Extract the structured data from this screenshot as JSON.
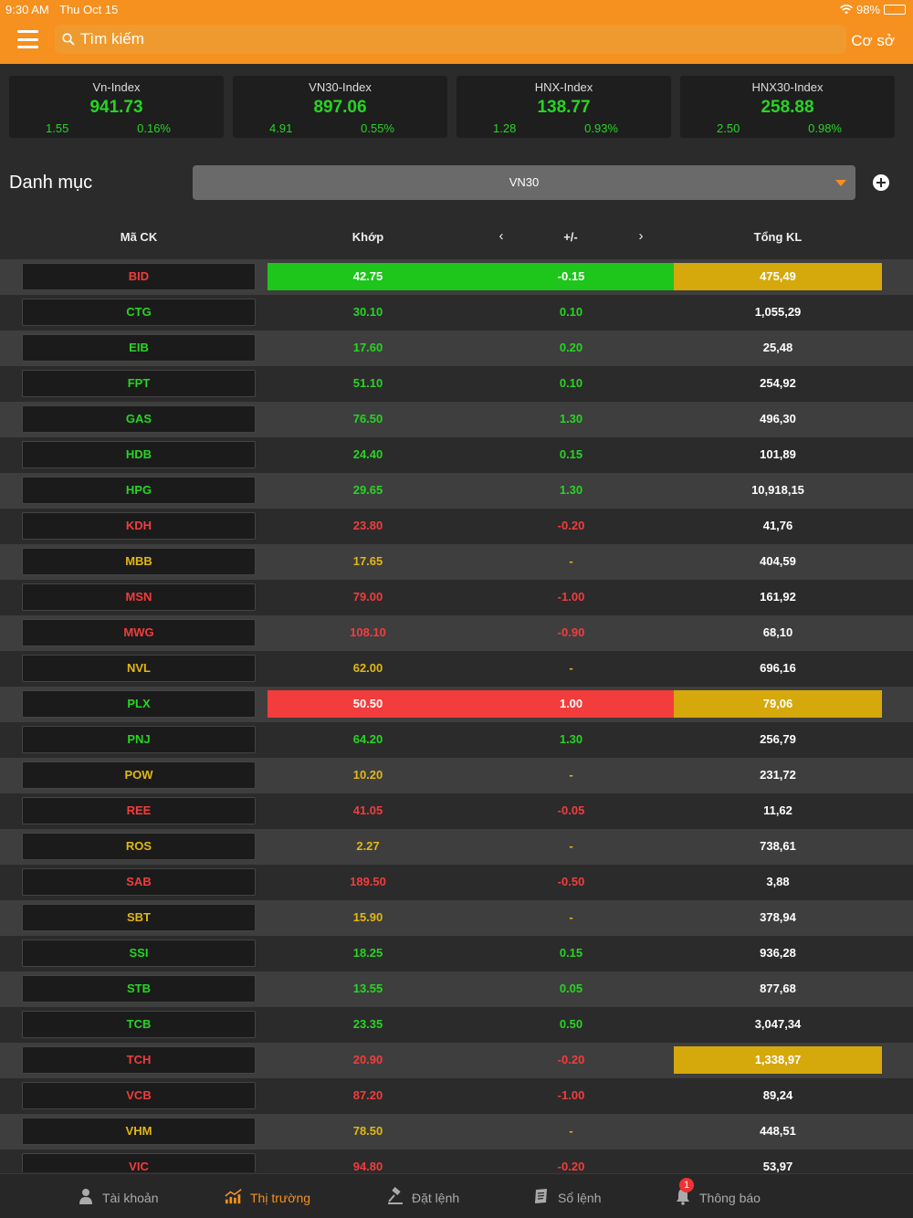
{
  "status": {
    "time": "9:30 AM",
    "date": "Thu Oct 15",
    "battery": "98%"
  },
  "header": {
    "search_placeholder": "Tìm kiếm",
    "base_label": "Cơ sở"
  },
  "colors": {
    "accent": "#f6901e",
    "up": "#27d523",
    "down": "#f33c3c",
    "ref": "#e2b714",
    "volume_highlight": "#d5a80c"
  },
  "indices": [
    {
      "name": "Vn-Index",
      "value": "941.73",
      "change": "1.55",
      "pct": "0.16%"
    },
    {
      "name": "VN30-Index",
      "value": "897.06",
      "change": "4.91",
      "pct": "0.55%"
    },
    {
      "name": "HNX-Index",
      "value": "138.77",
      "change": "1.28",
      "pct": "0.93%"
    },
    {
      "name": "HNX30-Index",
      "value": "258.88",
      "change": "2.50",
      "pct": "0.98%"
    }
  ],
  "category": {
    "label": "Danh mục",
    "selected": "VN30"
  },
  "table": {
    "headers": {
      "symbol": "Mã CK",
      "match": "Khớp",
      "prev": "‹",
      "change": "+/-",
      "next": "›",
      "volume": "Tổng KL"
    },
    "rows": [
      {
        "symbol": "BID",
        "price": "42.75",
        "change": "-0.15",
        "volume": "475,49",
        "color": "red",
        "flash": "green",
        "vol_hl": true
      },
      {
        "symbol": "CTG",
        "price": "30.10",
        "change": "0.10",
        "volume": "1,055,29",
        "color": "green"
      },
      {
        "symbol": "EIB",
        "price": "17.60",
        "change": "0.20",
        "volume": "25,48",
        "color": "green"
      },
      {
        "symbol": "FPT",
        "price": "51.10",
        "change": "0.10",
        "volume": "254,92",
        "color": "green"
      },
      {
        "symbol": "GAS",
        "price": "76.50",
        "change": "1.30",
        "volume": "496,30",
        "color": "green"
      },
      {
        "symbol": "HDB",
        "price": "24.40",
        "change": "0.15",
        "volume": "101,89",
        "color": "green"
      },
      {
        "symbol": "HPG",
        "price": "29.65",
        "change": "1.30",
        "volume": "10,918,15",
        "color": "green"
      },
      {
        "symbol": "KDH",
        "price": "23.80",
        "change": "-0.20",
        "volume": "41,76",
        "color": "red"
      },
      {
        "symbol": "MBB",
        "price": "17.65",
        "change": "-",
        "volume": "404,59",
        "color": "yellow"
      },
      {
        "symbol": "MSN",
        "price": "79.00",
        "change": "-1.00",
        "volume": "161,92",
        "color": "red"
      },
      {
        "symbol": "MWG",
        "price": "108.10",
        "change": "-0.90",
        "volume": "68,10",
        "color": "red"
      },
      {
        "symbol": "NVL",
        "price": "62.00",
        "change": "-",
        "volume": "696,16",
        "color": "yellow"
      },
      {
        "symbol": "PLX",
        "price": "50.50",
        "change": "1.00",
        "volume": "79,06",
        "color": "green",
        "flash": "red",
        "vol_hl": true
      },
      {
        "symbol": "PNJ",
        "price": "64.20",
        "change": "1.30",
        "volume": "256,79",
        "color": "green"
      },
      {
        "symbol": "POW",
        "price": "10.20",
        "change": "-",
        "volume": "231,72",
        "color": "yellow"
      },
      {
        "symbol": "REE",
        "price": "41.05",
        "change": "-0.05",
        "volume": "11,62",
        "color": "red"
      },
      {
        "symbol": "ROS",
        "price": "2.27",
        "change": "-",
        "volume": "738,61",
        "color": "yellow"
      },
      {
        "symbol": "SAB",
        "price": "189.50",
        "change": "-0.50",
        "volume": "3,88",
        "color": "red"
      },
      {
        "symbol": "SBT",
        "price": "15.90",
        "change": "-",
        "volume": "378,94",
        "color": "yellow"
      },
      {
        "symbol": "SSI",
        "price": "18.25",
        "change": "0.15",
        "volume": "936,28",
        "color": "green"
      },
      {
        "symbol": "STB",
        "price": "13.55",
        "change": "0.05",
        "volume": "877,68",
        "color": "green"
      },
      {
        "symbol": "TCB",
        "price": "23.35",
        "change": "0.50",
        "volume": "3,047,34",
        "color": "green"
      },
      {
        "symbol": "TCH",
        "price": "20.90",
        "change": "-0.20",
        "volume": "1,338,97",
        "color": "red",
        "vol_hl": true
      },
      {
        "symbol": "VCB",
        "price": "87.20",
        "change": "-1.00",
        "volume": "89,24",
        "color": "red"
      },
      {
        "symbol": "VHM",
        "price": "78.50",
        "change": "-",
        "volume": "448,51",
        "color": "yellow"
      },
      {
        "symbol": "VIC",
        "price": "94.80",
        "change": "-0.20",
        "volume": "53,97",
        "color": "red"
      }
    ]
  },
  "nav": {
    "items": [
      {
        "label": "Tài khoản",
        "icon": "user-icon"
      },
      {
        "label": "Thị trường",
        "icon": "market-chart-icon",
        "active": true
      },
      {
        "label": "Đặt lệnh",
        "icon": "gavel-icon"
      },
      {
        "label": "Sổ lệnh",
        "icon": "order-book-icon"
      },
      {
        "label": "Thông báo",
        "icon": "bell-icon",
        "badge": "1"
      }
    ]
  }
}
